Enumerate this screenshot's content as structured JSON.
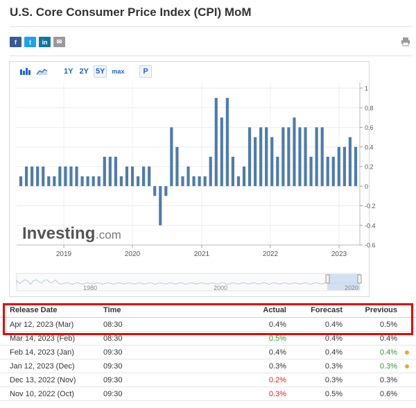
{
  "title": "U.S. Core Consumer Price Index (CPI) MoM",
  "share": {
    "facebook": "f",
    "twitter": "t",
    "linkedin": "in",
    "email": "✉"
  },
  "toolbar": {
    "ranges": [
      "1Y",
      "2Y",
      "5Y",
      "max"
    ],
    "active_range": "5Y",
    "p_label": "P"
  },
  "chart_data": {
    "type": "bar",
    "title": "",
    "ylim": [
      -0.6,
      1
    ],
    "yticks": [
      1,
      0.8,
      0.6,
      0.4,
      0.2,
      0,
      -0.2,
      -0.4,
      -0.6
    ],
    "ytick_labels": [
      "1",
      "0.8",
      "0.6",
      "0.4",
      "0.2",
      "0",
      "-0.2",
      "-0.4",
      "-0.6"
    ],
    "xtick_labels": [
      "2019",
      "2020",
      "2021",
      "2022",
      "2023"
    ],
    "bar_color": "#4e7bad",
    "values": [
      0.1,
      0.2,
      0.2,
      0.2,
      0.2,
      0.1,
      0.1,
      0.2,
      0.2,
      0.2,
      0.2,
      0.1,
      0.1,
      0.1,
      0.1,
      0.3,
      0.3,
      0.3,
      0.1,
      0.2,
      0.2,
      0.1,
      0.2,
      0.2,
      -0.1,
      -0.4,
      -0.1,
      0.6,
      0.4,
      0.1,
      0.2,
      0.1,
      0.1,
      0.1,
      0.3,
      0.9,
      0.7,
      0.9,
      0.3,
      0.1,
      0.2,
      0.6,
      0.5,
      0.6,
      0.6,
      0.5,
      0.3,
      0.6,
      0.6,
      0.7,
      0.6,
      0.6,
      0.3,
      0.6,
      0.6,
      0.3,
      0.3,
      0.4,
      0.4,
      0.5,
      0.4
    ],
    "watermark": "Investing",
    "watermark_suffix": ".com",
    "navigator_labels": [
      "1980",
      "2000",
      "2020"
    ]
  },
  "table": {
    "headers": {
      "release_date": "Release Date",
      "time": "Time",
      "actual": "Actual",
      "forecast": "Forecast",
      "previous": "Previous"
    },
    "rows": [
      {
        "release_date": "Apr 12, 2023 (Mar)",
        "time": "08:30",
        "actual": "0.4%",
        "forecast": "0.4%",
        "previous": "0.5%",
        "actual_color": "",
        "previous_color": "",
        "dot": false
      },
      {
        "release_date": "Mar 14, 2023 (Feb)",
        "time": "08:30",
        "actual": "0.5%",
        "forecast": "0.4%",
        "previous": "0.4%",
        "actual_color": "green",
        "previous_color": "",
        "dot": false
      },
      {
        "release_date": "Feb 14, 2023 (Jan)",
        "time": "09:30",
        "actual": "0.4%",
        "forecast": "0.4%",
        "previous": "0.4%",
        "actual_color": "",
        "previous_color": "green",
        "dot": true
      },
      {
        "release_date": "Jan 12, 2023 (Dec)",
        "time": "09:30",
        "actual": "0.3%",
        "forecast": "0.3%",
        "previous": "0.3%",
        "actual_color": "",
        "previous_color": "green",
        "dot": true
      },
      {
        "release_date": "Dec 13, 2022 (Nov)",
        "time": "09:30",
        "actual": "0.2%",
        "forecast": "0.3%",
        "previous": "0.3%",
        "actual_color": "red",
        "previous_color": "",
        "dot": false
      },
      {
        "release_date": "Nov 10, 2022 (Oct)",
        "time": "09:30",
        "actual": "0.3%",
        "forecast": "0.5%",
        "previous": "0.6%",
        "actual_color": "red",
        "previous_color": "",
        "dot": false
      }
    ]
  }
}
